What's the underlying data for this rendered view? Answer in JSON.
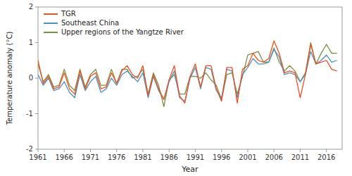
{
  "chart_data": {
    "type": "line",
    "xlabel": "Year",
    "ylabel": "Temperature anomaly (°C)",
    "x": [
      1961,
      1962,
      1963,
      1964,
      1965,
      1966,
      1967,
      1968,
      1969,
      1970,
      1971,
      1972,
      1973,
      1974,
      1975,
      1976,
      1977,
      1978,
      1979,
      1980,
      1981,
      1982,
      1983,
      1984,
      1985,
      1986,
      1987,
      1988,
      1989,
      1990,
      1991,
      1992,
      1993,
      1994,
      1995,
      1996,
      1997,
      1998,
      1999,
      2000,
      2001,
      2002,
      2003,
      2004,
      2005,
      2006,
      2007,
      2008,
      2009,
      2010,
      2011,
      2012,
      2013,
      2014,
      2015,
      2016,
      2017,
      2018
    ],
    "series": [
      {
        "name": "TGR",
        "color": "#f05020",
        "values": [
          0.5,
          -0.15,
          0.05,
          -0.3,
          -0.25,
          0.15,
          -0.3,
          -0.45,
          0.2,
          -0.3,
          0.05,
          0.15,
          -0.3,
          -0.25,
          0.15,
          -0.15,
          0.2,
          0.35,
          0.1,
          0.0,
          0.35,
          -0.5,
          0.1,
          -0.3,
          -0.6,
          -0.05,
          0.35,
          -0.5,
          -0.7,
          0.05,
          0.4,
          -0.25,
          0.35,
          0.35,
          -0.3,
          -0.65,
          0.3,
          0.3,
          -0.7,
          0.25,
          0.35,
          0.7,
          0.5,
          0.45,
          0.55,
          1.05,
          0.7,
          0.15,
          0.2,
          0.15,
          -0.55,
          0.1,
          0.95,
          0.4,
          0.45,
          0.5,
          0.25,
          0.2
        ]
      },
      {
        "name": "Southeast China",
        "color": "#5090c0",
        "values": [
          0.1,
          -0.2,
          0.0,
          -0.35,
          -0.3,
          -0.1,
          -0.4,
          -0.55,
          0.1,
          -0.35,
          -0.1,
          0.05,
          -0.4,
          -0.3,
          0.0,
          -0.2,
          0.1,
          0.2,
          0.05,
          -0.1,
          0.15,
          -0.55,
          0.05,
          -0.35,
          -0.6,
          -0.1,
          0.2,
          -0.55,
          -0.65,
          0.0,
          0.3,
          -0.3,
          0.3,
          0.25,
          -0.35,
          -0.55,
          0.25,
          0.2,
          -0.55,
          0.1,
          0.3,
          0.55,
          0.4,
          0.4,
          0.45,
          0.8,
          0.6,
          0.1,
          0.15,
          0.1,
          -0.1,
          0.1,
          0.75,
          0.4,
          0.5,
          0.65,
          0.45,
          0.5
        ]
      },
      {
        "name": "Upper regions of the Yangtze River",
        "color": "#7a9040",
        "values": [
          0.4,
          -0.1,
          0.1,
          -0.25,
          -0.2,
          0.25,
          -0.2,
          -0.35,
          0.25,
          -0.25,
          0.1,
          0.25,
          -0.2,
          -0.2,
          0.25,
          -0.15,
          0.25,
          0.25,
          0.0,
          0.05,
          0.25,
          -0.45,
          0.15,
          -0.2,
          -0.8,
          -0.05,
          0.1,
          -0.45,
          -0.45,
          0.05,
          0.05,
          0.0,
          0.15,
          -0.05,
          -0.2,
          -0.6,
          0.1,
          0.15,
          -0.45,
          0.05,
          0.65,
          0.7,
          0.75,
          0.45,
          0.45,
          0.85,
          0.45,
          0.2,
          0.35,
          0.2,
          -0.1,
          0.15,
          1.0,
          0.4,
          0.7,
          0.95,
          0.7,
          0.7
        ]
      }
    ],
    "xlim": [
      1961,
      2019
    ],
    "xticks": [
      1961,
      1966,
      1971,
      1976,
      1981,
      1986,
      1991,
      1996,
      2001,
      2006,
      2011,
      2016
    ],
    "ylim": [
      -2,
      2
    ],
    "yticks": [
      -2,
      -1,
      0,
      1,
      2
    ],
    "legend": "upper left",
    "grid": false
  }
}
